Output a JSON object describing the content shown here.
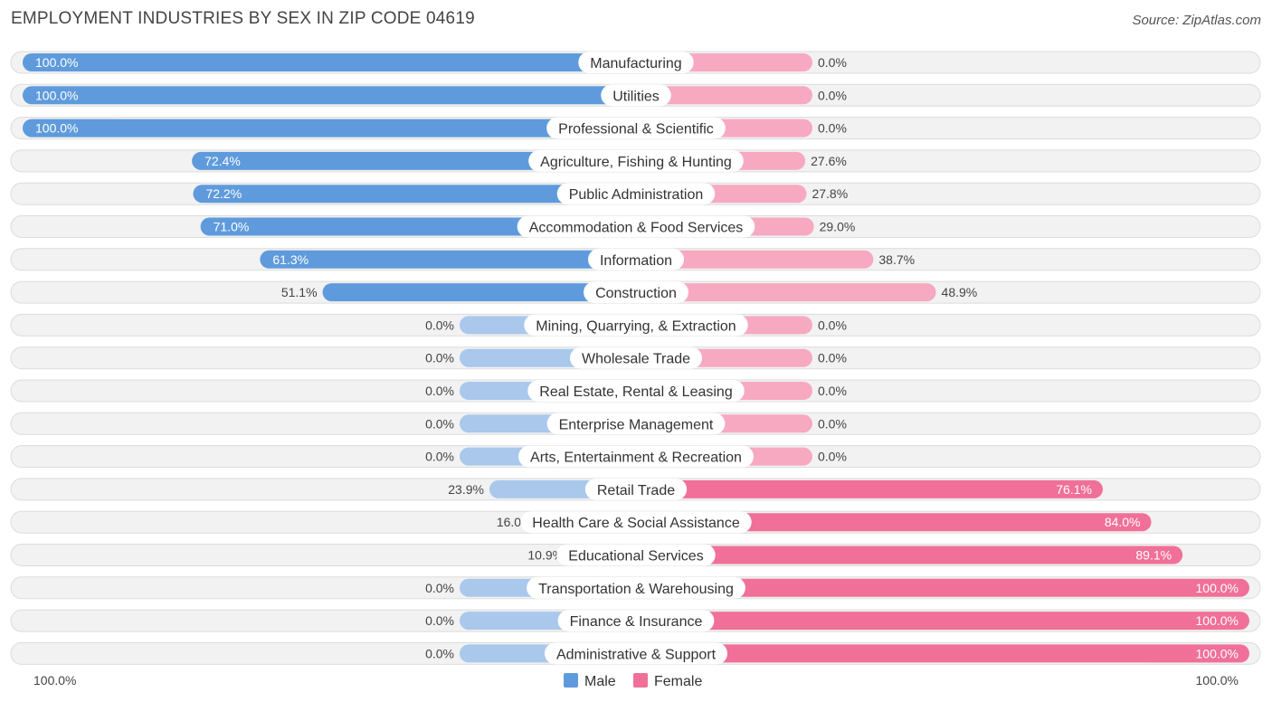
{
  "chart_data": {
    "type": "bar",
    "title": "EMPLOYMENT INDUSTRIES BY SEX IN ZIP CODE 04619",
    "source": "Source: ZipAtlas.com",
    "orientation": "horizontal-diverging",
    "xlim": [
      -100,
      100
    ],
    "axis_labels": {
      "left": "100.0%",
      "right": "100.0%"
    },
    "colors": {
      "male": "#5f9bdc",
      "male_light": "#a9c8ec",
      "female": "#f07099",
      "female_light": "#f7a9c2",
      "row_bg": "#f2f2f2"
    },
    "legend": [
      {
        "name": "Male",
        "color": "#5f9bdc"
      },
      {
        "name": "Female",
        "color": "#f07099"
      }
    ],
    "categories": [
      "Manufacturing",
      "Utilities",
      "Professional & Scientific",
      "Agriculture, Fishing & Hunting",
      "Public Administration",
      "Accommodation & Food Services",
      "Information",
      "Construction",
      "Mining, Quarrying, & Extraction",
      "Wholesale Trade",
      "Real Estate, Rental & Leasing",
      "Enterprise Management",
      "Arts, Entertainment & Recreation",
      "Retail Trade",
      "Health Care & Social Assistance",
      "Educational Services",
      "Transportation & Warehousing",
      "Finance & Insurance",
      "Administrative & Support"
    ],
    "series": [
      {
        "name": "Male",
        "values": [
          100.0,
          100.0,
          100.0,
          72.4,
          72.2,
          71.0,
          61.3,
          51.1,
          0.0,
          0.0,
          0.0,
          0.0,
          0.0,
          23.9,
          16.0,
          10.9,
          0.0,
          0.0,
          0.0
        ],
        "labels": [
          "100.0%",
          "100.0%",
          "100.0%",
          "72.4%",
          "72.2%",
          "71.0%",
          "61.3%",
          "51.1%",
          "0.0%",
          "0.0%",
          "0.0%",
          "0.0%",
          "0.0%",
          "23.9%",
          "16.0%",
          "10.9%",
          "0.0%",
          "0.0%",
          "0.0%"
        ]
      },
      {
        "name": "Female",
        "values": [
          0.0,
          0.0,
          0.0,
          27.6,
          27.8,
          29.0,
          38.7,
          48.9,
          0.0,
          0.0,
          0.0,
          0.0,
          0.0,
          76.1,
          84.0,
          89.1,
          100.0,
          100.0,
          100.0
        ],
        "labels": [
          "0.0%",
          "0.0%",
          "0.0%",
          "27.6%",
          "27.8%",
          "29.0%",
          "38.7%",
          "48.9%",
          "0.0%",
          "0.0%",
          "0.0%",
          "0.0%",
          "0.0%",
          "76.1%",
          "84.0%",
          "89.1%",
          "100.0%",
          "100.0%",
          "100.0%"
        ]
      }
    ]
  }
}
